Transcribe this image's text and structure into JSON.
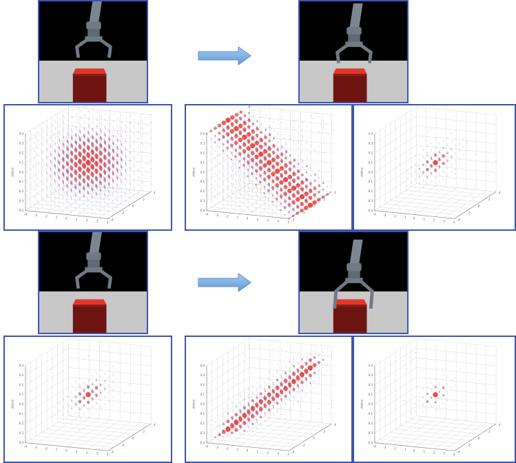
{
  "axes": {
    "z_label": "status",
    "z_ticks": [
      "0.4",
      "0.3",
      "0.2",
      "0.1",
      "0.0",
      "-0.1",
      "-0.2",
      "-0.3",
      "-0.4"
    ],
    "x_ticks": [
      "-4",
      "-3",
      "-2",
      "-1",
      "0",
      "1",
      "2",
      "3",
      "4"
    ],
    "y_ticks": [
      "-4",
      "-2",
      "0",
      "2",
      "4"
    ]
  },
  "colors": {
    "frame_border": "#3a54b5",
    "arrow_fill": "#7fb2e5",
    "block": "#6e1512",
    "block_top": "#e0372a",
    "gripper": "#6f7a85",
    "point_low": "#5a3f9e",
    "point_high": "#e8473f"
  },
  "rows": [
    {
      "sim_before": {
        "gripper": "open-above-block",
        "icon": "robot-gripper"
      },
      "sim_after": {
        "gripper": "open-lowered",
        "icon": "robot-gripper"
      },
      "arrow": {
        "icon": "right-arrow"
      },
      "plots": [
        {
          "distribution": "broad-sphere"
        },
        {
          "distribution": "diagonal-wedge"
        },
        {
          "distribution": "narrow-cluster"
        }
      ]
    },
    {
      "sim_before": {
        "gripper": "open-above-block",
        "icon": "robot-gripper"
      },
      "sim_after": {
        "gripper": "grasping-block",
        "icon": "robot-gripper"
      },
      "arrow": {
        "icon": "right-arrow"
      },
      "plots": [
        {
          "distribution": "small-cluster"
        },
        {
          "distribution": "elongated-ridge"
        },
        {
          "distribution": "tight-cluster"
        }
      ]
    }
  ]
}
